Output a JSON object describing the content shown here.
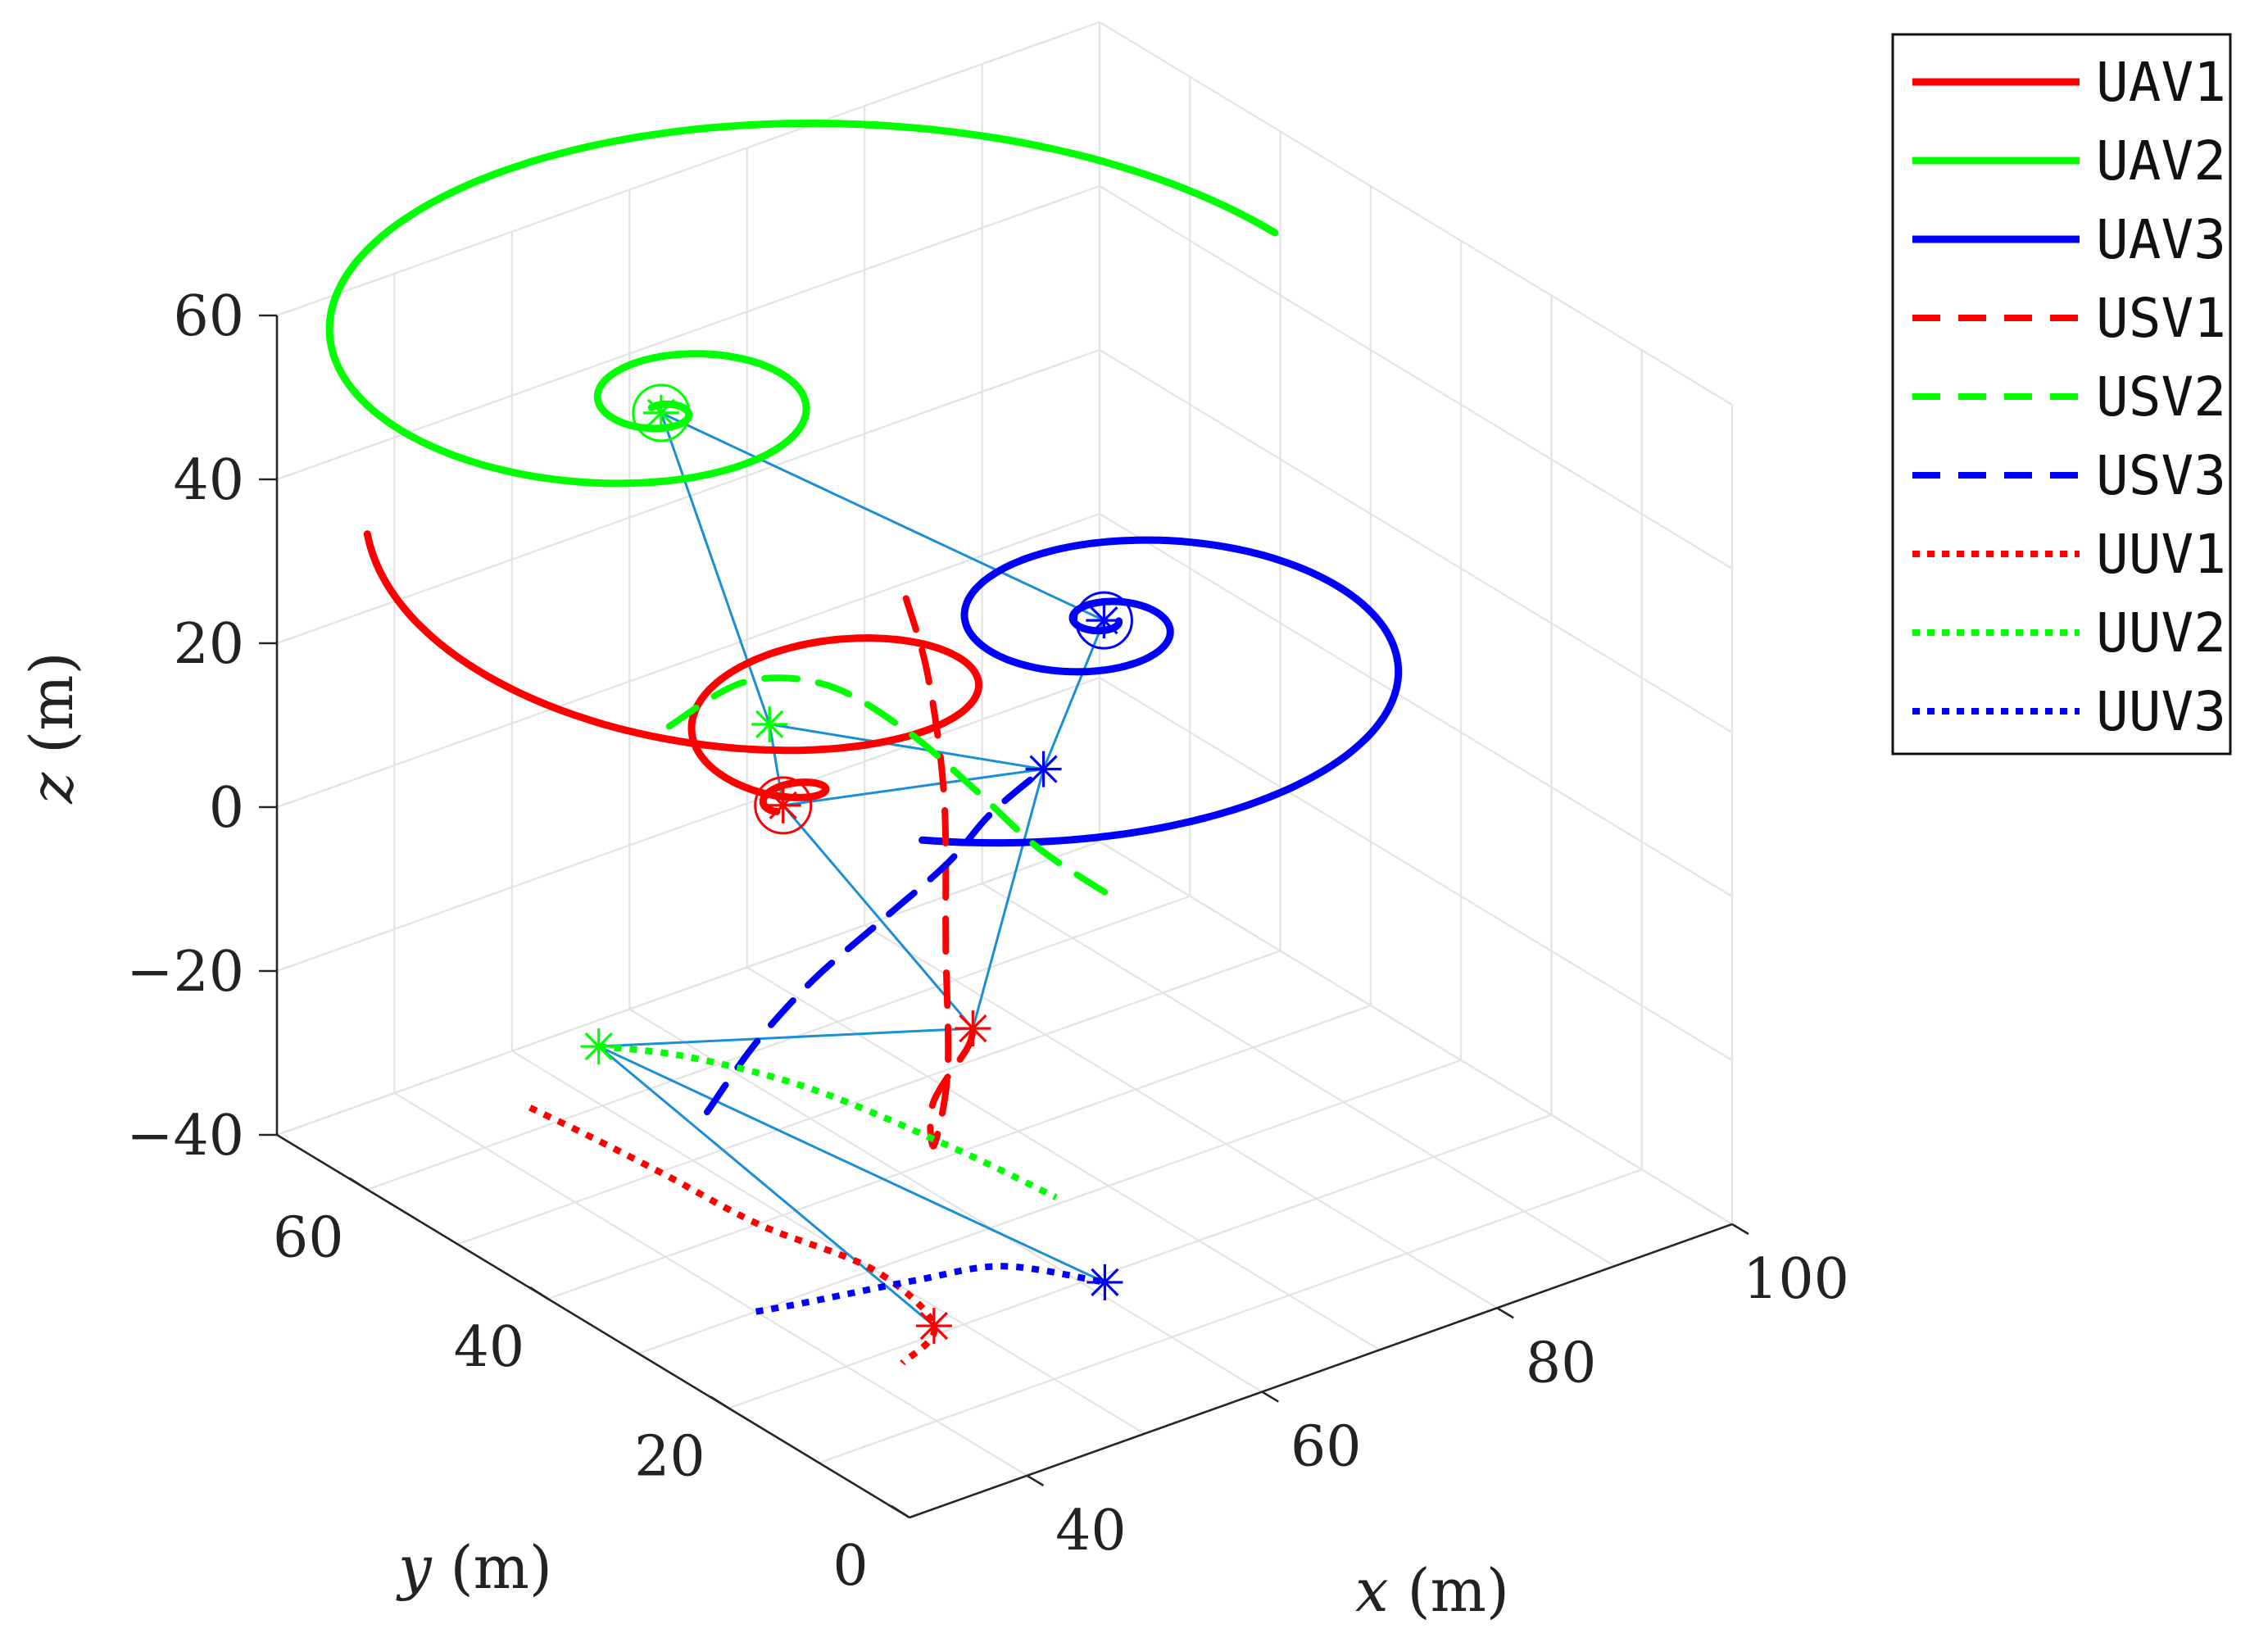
{
  "chart_data": {
    "type": "line3d",
    "xlabel_var": "x",
    "xlabel_unit": "(m)",
    "ylabel_var": "y",
    "ylabel_unit": "(m)",
    "zlabel_var": "z",
    "zlabel_unit": "(m)",
    "xlim": [
      30,
      100
    ],
    "ylim": [
      0,
      70
    ],
    "zlim": [
      -40,
      60
    ],
    "xticks": [
      "40",
      "60",
      "80",
      "100"
    ],
    "yticks": [
      "0",
      "20",
      "40",
      "60"
    ],
    "zticks": [
      "-40",
      "-20",
      "0",
      "20",
      "40",
      "60"
    ],
    "grid": true,
    "legend_position": "top-right",
    "colors": {
      "red": "#ff0000",
      "green": "#00ff00",
      "blue": "#0000ff",
      "links": "#1a8fd6"
    },
    "series": [
      {
        "name": "UAV1",
        "color": "#ff0000",
        "style": "solid",
        "role": "spiral",
        "start": [
          30,
          60,
          40
        ],
        "center": [
          50,
          40,
          10
        ],
        "turns": 2.2,
        "end_radius": 1
      },
      {
        "name": "UAV2",
        "color": "#00ff00",
        "style": "solid",
        "role": "spiral",
        "start": [
          98,
          48,
          50
        ],
        "center": [
          55,
          60,
          42
        ],
        "turns": 2.3,
        "end_radius": 1
      },
      {
        "name": "UAV3",
        "color": "#0000ff",
        "style": "solid",
        "role": "spiral",
        "start": [
          58,
          35,
          5
        ],
        "center": [
          85,
          50,
          8
        ],
        "turns": 2.3,
        "end_radius": 1
      },
      {
        "name": "USV1",
        "color": "#ff0000",
        "style": "dashed",
        "role": "path",
        "points": [
          [
            72,
            55,
            14
          ],
          [
            70,
            50,
            9
          ],
          [
            66,
            43,
            1
          ],
          [
            60,
            35,
            -9
          ],
          [
            54,
            27,
            -16
          ],
          [
            49,
            22,
            -19
          ],
          [
            52,
            26,
            -18
          ],
          [
            58,
            30,
            -17
          ],
          [
            60,
            32,
            -17
          ]
        ]
      },
      {
        "name": "USV2",
        "color": "#00ff00",
        "style": "dashed",
        "role": "path",
        "points": [
          [
            48,
            50,
            14
          ],
          [
            56,
            52,
            14
          ],
          [
            63,
            52,
            10
          ],
          [
            69,
            51,
            2
          ],
          [
            74,
            50,
            -7
          ],
          [
            78,
            48,
            -15
          ],
          [
            82,
            45,
            -21
          ]
        ]
      },
      {
        "name": "USV3",
        "color": "#0000ff",
        "style": "dashed",
        "role": "path",
        "points": [
          [
            42,
            38,
            -22
          ],
          [
            50,
            43,
            -21
          ],
          [
            58,
            47,
            -20
          ],
          [
            66,
            50,
            -19
          ],
          [
            74,
            53,
            -18
          ],
          [
            80,
            56,
            -17
          ],
          [
            86,
            58,
            -16
          ]
        ]
      },
      {
        "name": "UUV1",
        "color": "#ff0000",
        "style": "dotted",
        "role": "path",
        "points": [
          [
            30,
            42,
            -18
          ],
          [
            35,
            42,
            -24
          ],
          [
            40,
            40,
            -30
          ],
          [
            45,
            36,
            -36
          ],
          [
            50,
            30,
            -40
          ],
          [
            49,
            22,
            -41
          ],
          [
            44,
            19,
            -41
          ]
        ]
      },
      {
        "name": "UUV2",
        "color": "#00ff00",
        "style": "dotted",
        "role": "path",
        "points": [
          [
            42,
            50,
            -22
          ],
          [
            48,
            48,
            -25
          ],
          [
            54,
            42,
            -28
          ],
          [
            60,
            34,
            -33
          ],
          [
            64,
            28,
            -37
          ]
        ]
      },
      {
        "name": "UUV3",
        "color": "#0000ff",
        "style": "dotted",
        "role": "path",
        "points": [
          [
            40,
            30,
            -40
          ],
          [
            44,
            30,
            -41
          ],
          [
            52,
            28,
            -41
          ],
          [
            58,
            26,
            -41
          ],
          [
            62,
            20,
            -41
          ]
        ]
      }
    ],
    "markers": [
      {
        "label": "UAV1",
        "color": "#ff0000",
        "pos": [
          50,
          40,
          10
        ],
        "circle": true
      },
      {
        "label": "UAV2",
        "color": "#00ff00",
        "pos": [
          55,
          60,
          42
        ],
        "circle": true
      },
      {
        "label": "UAV3",
        "color": "#0000ff",
        "pos": [
          85,
          50,
          8
        ],
        "circle": true
      },
      {
        "label": "USV1",
        "color": "#ff0000",
        "pos": [
          60,
          32,
          -17
        ]
      },
      {
        "label": "USV2",
        "color": "#00ff00",
        "pos": [
          55,
          48,
          12
        ]
      },
      {
        "label": "USV3",
        "color": "#0000ff",
        "pos": [
          86,
          58,
          -16
        ]
      },
      {
        "label": "UUV1",
        "color": "#ff0000",
        "pos": [
          49,
          22,
          -41
        ]
      },
      {
        "label": "UUV2",
        "color": "#00ff00",
        "pos": [
          42,
          50,
          -22
        ]
      },
      {
        "label": "UUV3",
        "color": "#0000ff",
        "pos": [
          62,
          20,
          -41
        ]
      }
    ],
    "links": [
      [
        1,
        4
      ],
      [
        4,
        0
      ],
      [
        0,
        5
      ],
      [
        1,
        2
      ],
      [
        0,
        3
      ],
      [
        3,
        5
      ],
      [
        2,
        5
      ],
      [
        3,
        7
      ],
      [
        7,
        6
      ],
      [
        7,
        8
      ],
      [
        4,
        5
      ]
    ]
  }
}
